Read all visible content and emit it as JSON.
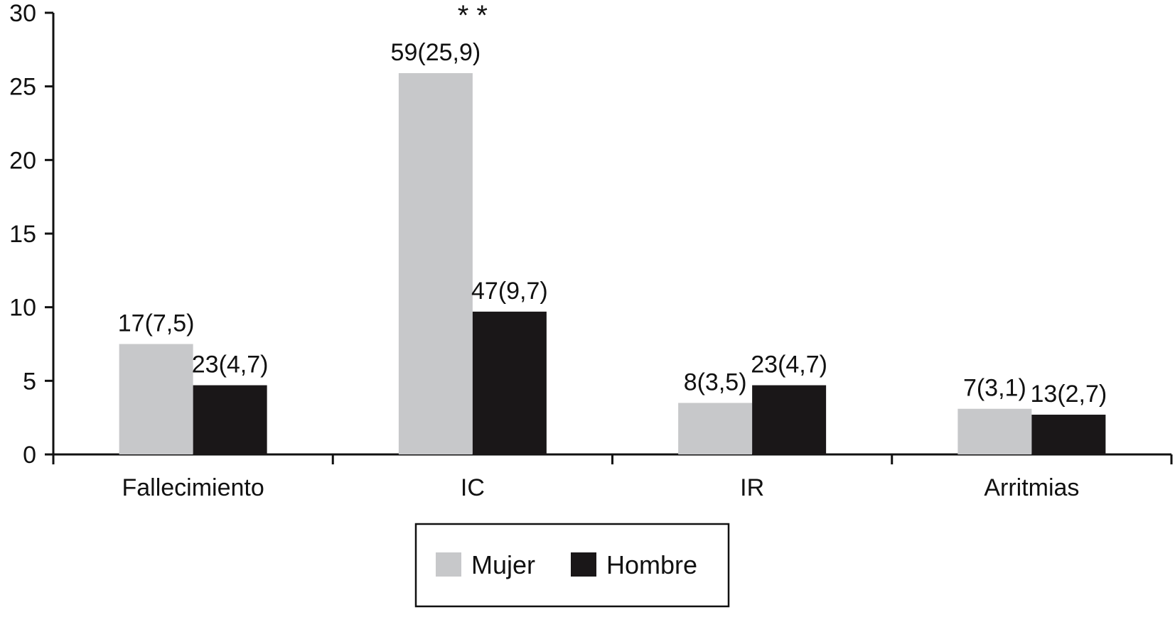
{
  "chart_data": {
    "type": "bar",
    "title": "",
    "xlabel": "",
    "ylabel": "",
    "ylim": [
      0,
      30
    ],
    "yticks": [
      0,
      5,
      10,
      15,
      20,
      25,
      30
    ],
    "grid": false,
    "legend_position": "bottom-center",
    "categories": [
      "Fallecimiento",
      "IC",
      "IR",
      "Arritmias"
    ],
    "series": [
      {
        "name": "Mujer",
        "color": "#c7c8ca",
        "values": [
          7.5,
          25.9,
          3.5,
          3.1
        ],
        "labels": [
          "17(7,5)",
          "59(25,9)",
          "8(3,5)",
          "7(3,1)"
        ]
      },
      {
        "name": "Hombre",
        "color": "#1a1718",
        "values": [
          4.7,
          9.7,
          4.7,
          2.7
        ],
        "labels": [
          "23(4,7)",
          "47(9,7)",
          "23(4,7)",
          "13(2,7)"
        ]
      }
    ],
    "annotations": [
      {
        "category": "IC",
        "series": "Mujer",
        "text": "* *"
      }
    ]
  }
}
